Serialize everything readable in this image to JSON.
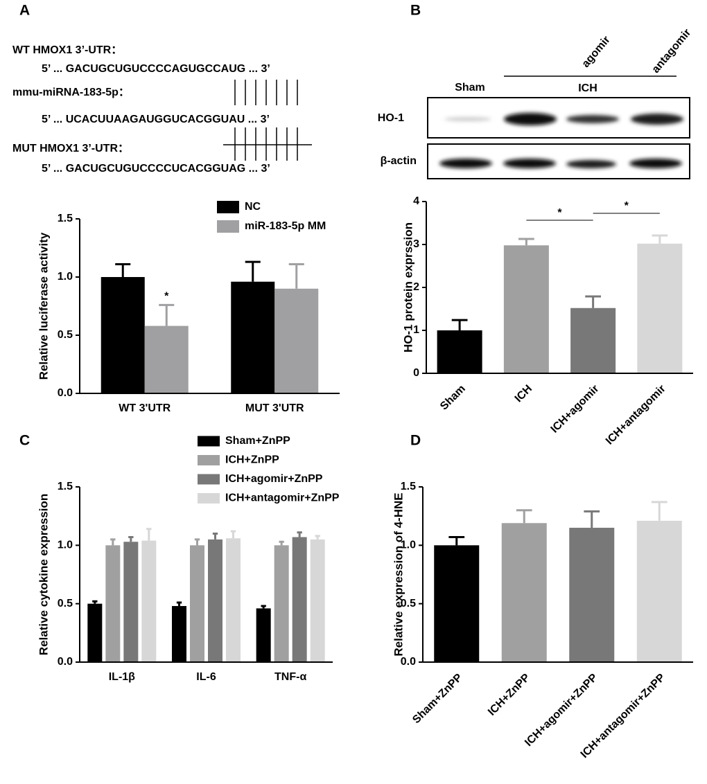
{
  "panels": [
    "A",
    "B",
    "C",
    "D"
  ],
  "sequences": {
    "wt_label": "WT HMOX1 3’-UTR：",
    "wt_seq": "5’ ... GACUGCUGUCCCCAGUGCCAUG ... 3’",
    "mirna_label": "mmu-miRNA-183-5p：",
    "mirna_seq": "5’ ... UCACUUAAGAUGGUCACGGUAU ... 3’",
    "mut_label": "MUT HMOX1 3’-UTR：",
    "mut_seq": "5’ ... GACUGCUGUCCCCUCACGGUAG ... 3’"
  },
  "blot": {
    "groups": [
      "Sham",
      "ICH"
    ],
    "subgroups": [
      "agomir",
      "antagomir"
    ],
    "rows": [
      "HO-1",
      "β-actin"
    ]
  },
  "chart_data": [
    {
      "type": "bar",
      "y_label": "Relative luciferase activity",
      "categories": [
        "WT 3'UTR",
        "MUT 3'UTR"
      ],
      "series": [
        {
          "name": "NC",
          "color": "#000000",
          "values": [
            1.0,
            0.96
          ],
          "errors": [
            0.11,
            0.17
          ]
        },
        {
          "name": "miR-183-5p MM",
          "color": "#a0a0a2",
          "values": [
            0.58,
            0.9
          ],
          "errors": [
            0.18,
            0.21
          ]
        }
      ],
      "ylim": [
        0,
        1.5
      ],
      "yticks": [
        {
          "value": 0,
          "label": "0.0"
        },
        0.5,
        {
          "value": 1,
          "label": "1.0"
        },
        1.5
      ],
      "annotations": [
        "*"
      ]
    },
    {
      "type": "bar",
      "y_label": "HO-1 protein exprssion",
      "categories": [
        "Sham",
        "ICH",
        "ICH+agomir",
        "ICH+antagomir"
      ],
      "values": [
        1.0,
        2.98,
        1.52,
        3.02
      ],
      "errors": [
        0.24,
        0.15,
        0.27,
        0.19
      ],
      "colors": [
        "#000000",
        "#a0a0a0",
        "#787878",
        "#d7d7d7"
      ],
      "ylim": [
        0,
        4
      ],
      "yticks": [
        0,
        1,
        2,
        3,
        4
      ],
      "annotations": [
        "*",
        "*"
      ]
    },
    {
      "type": "bar",
      "y_label": "Relative cytokine expression",
      "categories": [
        "IL-1β",
        "IL-6",
        "TNF-α"
      ],
      "series": [
        {
          "name": "Sham+ZnPP",
          "color": "#000000",
          "values": [
            0.5,
            0.48,
            0.46
          ],
          "errors": [
            0.02,
            0.03,
            0.02
          ]
        },
        {
          "name": "ICH+ZnPP",
          "color": "#a0a0a0",
          "values": [
            1.0,
            1.0,
            1.0
          ],
          "errors": [
            0.05,
            0.05,
            0.03
          ]
        },
        {
          "name": "ICH+agomir+ZnPP",
          "color": "#787878",
          "values": [
            1.03,
            1.05,
            1.07
          ],
          "errors": [
            0.04,
            0.05,
            0.04
          ]
        },
        {
          "name": "ICH+antagomir+ZnPP",
          "color": "#d7d7d7",
          "values": [
            1.04,
            1.06,
            1.05
          ],
          "errors": [
            0.1,
            0.06,
            0.03
          ]
        }
      ],
      "ylim": [
        0,
        1.5
      ],
      "yticks": [
        {
          "value": 0,
          "label": "0.0"
        },
        0.5,
        {
          "value": 1,
          "label": "1.0"
        },
        1.5
      ]
    },
    {
      "type": "bar",
      "y_label": "Relative expression of 4-HNE",
      "categories": [
        "Sham+ZnPP",
        "ICH+ZnPP",
        "ICH+agomir+ZnPP",
        "ICH+antagomir+ZnPP"
      ],
      "values": [
        1.0,
        1.19,
        1.15,
        1.21
      ],
      "errors": [
        0.07,
        0.11,
        0.14,
        0.16
      ],
      "colors": [
        "#000000",
        "#a0a0a0",
        "#787878",
        "#d7d7d7"
      ],
      "ylim": [
        0,
        1.5
      ],
      "yticks": [
        {
          "value": 0,
          "label": "0.0"
        },
        0.5,
        {
          "value": 1,
          "label": "1.0"
        },
        1.5
      ]
    }
  ]
}
